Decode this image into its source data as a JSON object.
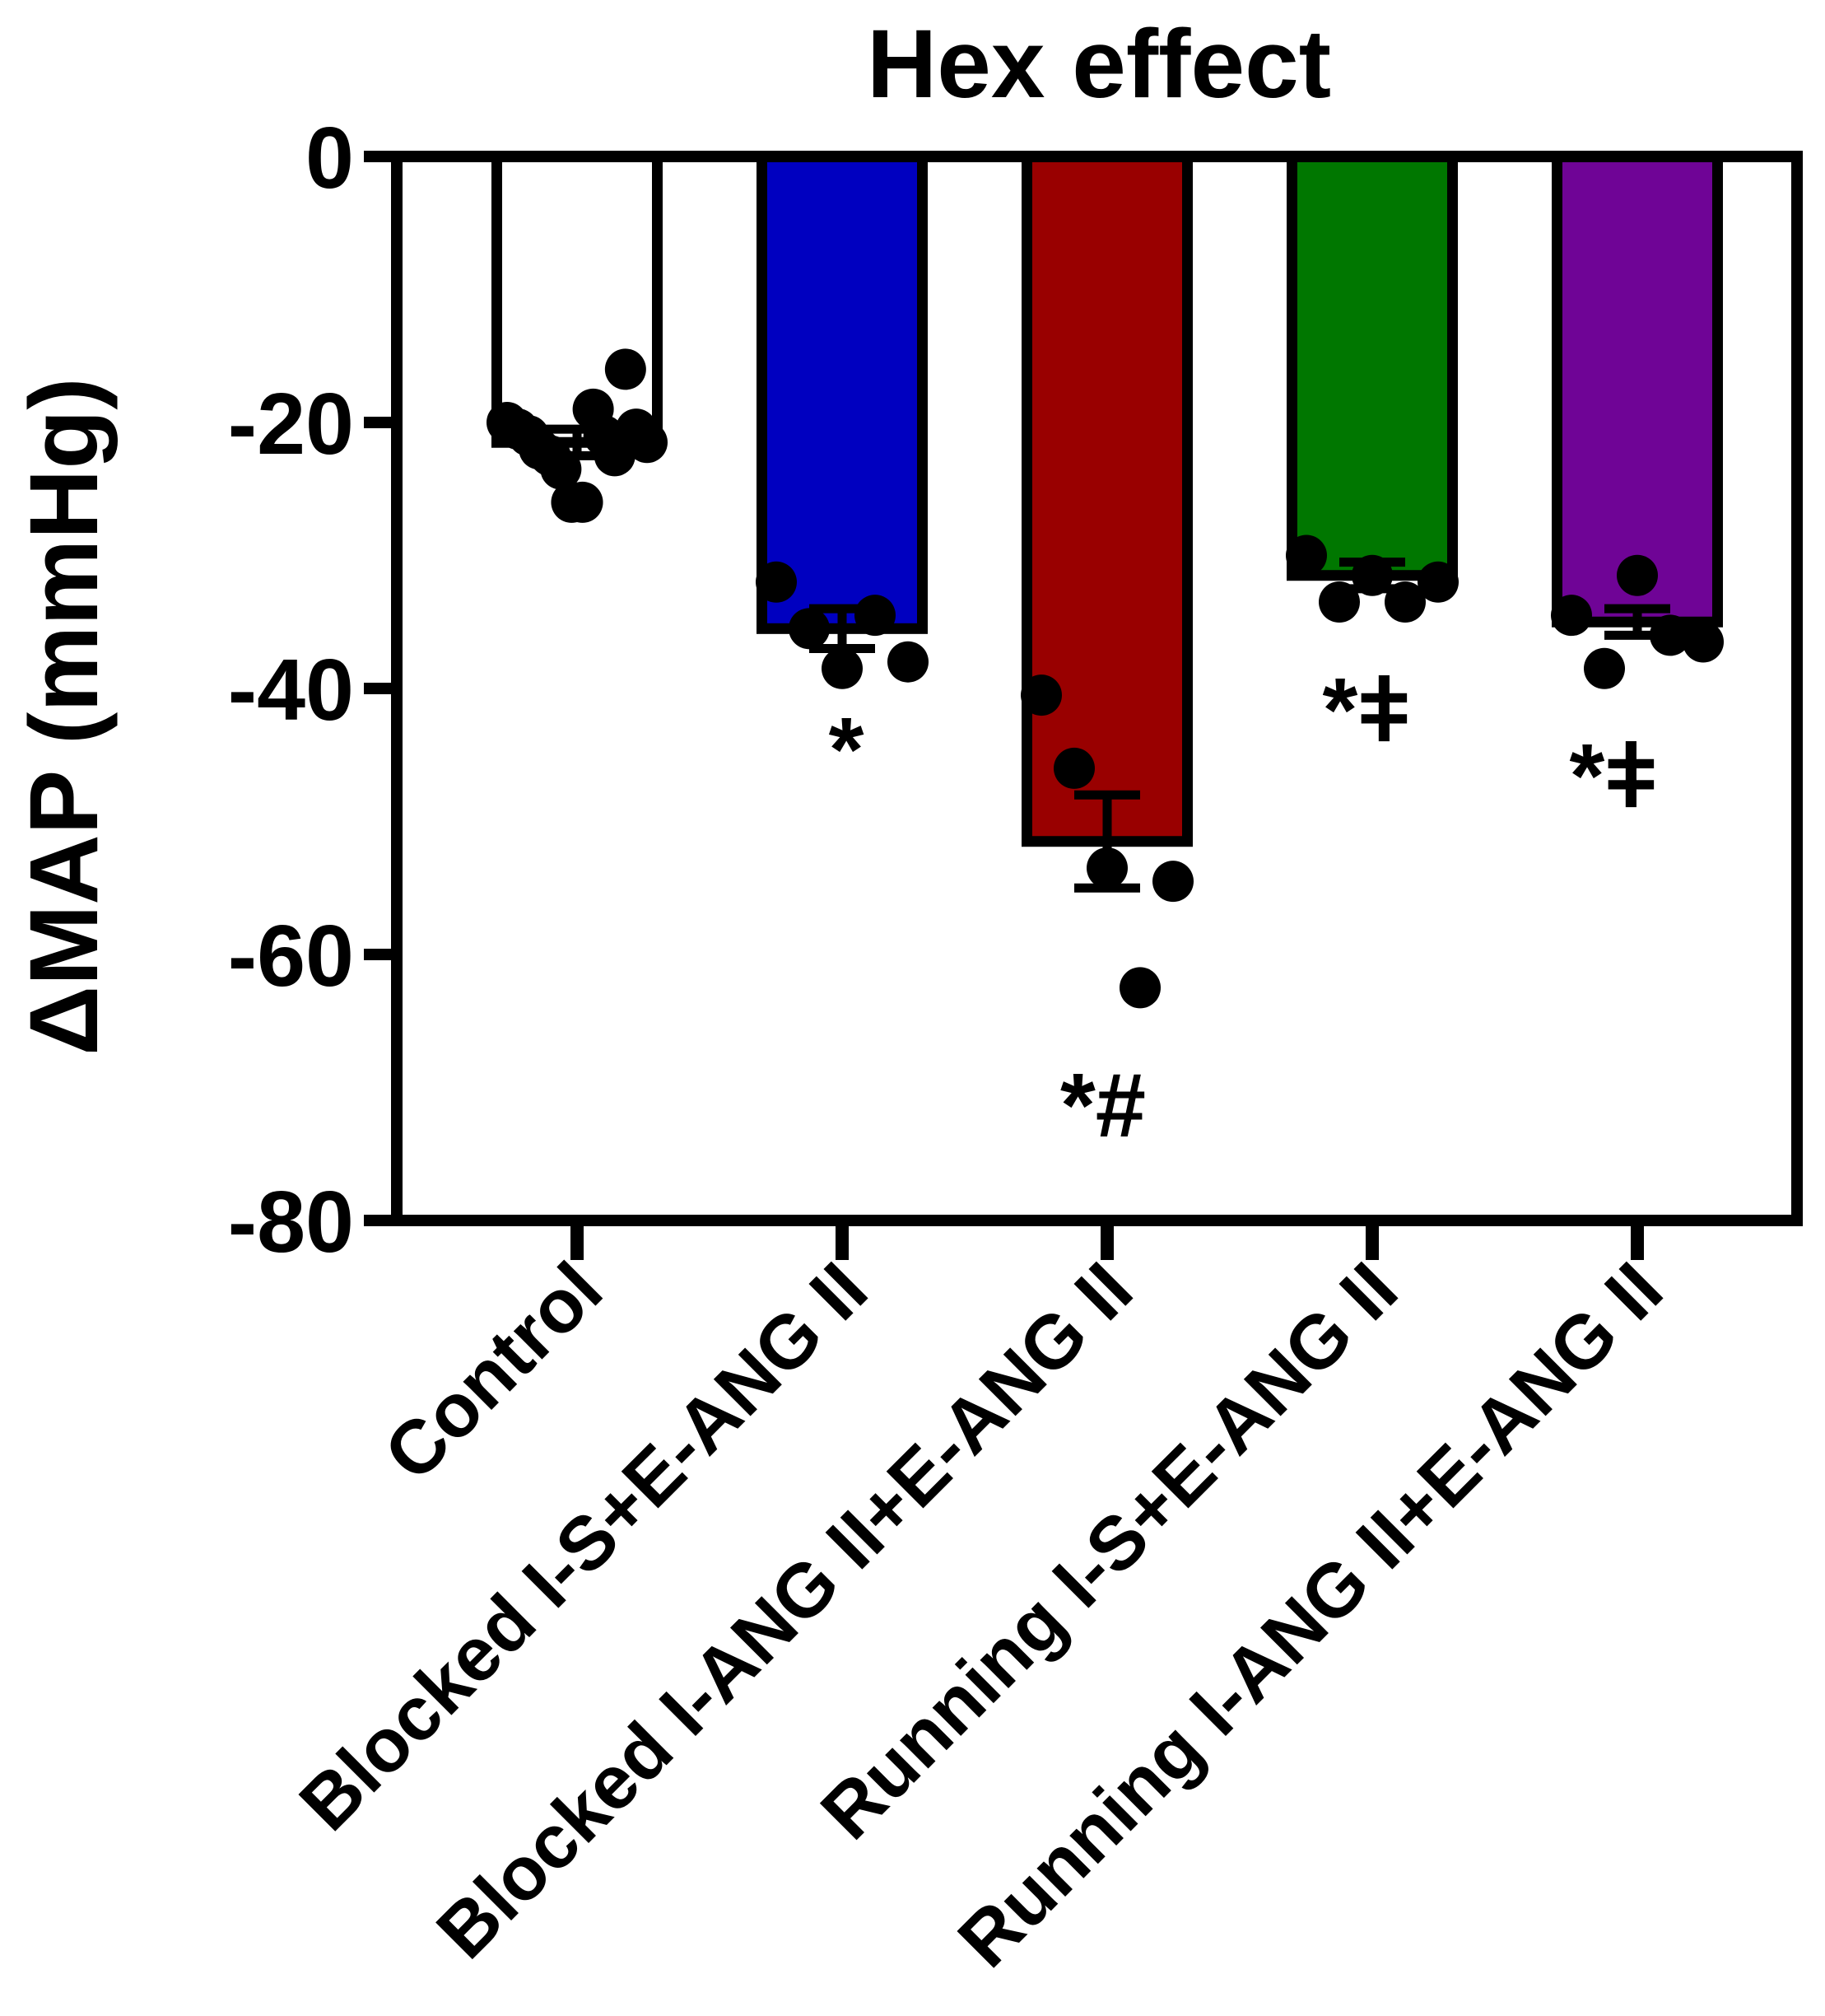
{
  "chart_data": {
    "type": "bar",
    "title": "Hex effect",
    "xlabel": "",
    "ylabel": "ΔMAP (mmHg)",
    "ylim": [
      -80,
      0
    ],
    "yticks": [
      0,
      -20,
      -40,
      -60,
      -80
    ],
    "ytick_labels": [
      "0",
      "-20",
      "-40",
      "-60",
      "-80"
    ],
    "grid": false,
    "legend": "none",
    "categories": [
      "Control",
      "Blocked I-S+E-ANG II",
      "Blocked I-ANG II+E-ANG II",
      "Running I-S+E-ANG II",
      "Running I-ANG II+E-ANG II"
    ],
    "values": [
      -21.5,
      -35.5,
      -51.5,
      -31.5,
      -35
    ],
    "sem": [
      1.0,
      1.5,
      3.5,
      1.0,
      1.0
    ],
    "colors": [
      "#ffffff",
      "#0000c0",
      "#990000",
      "#007700",
      "#6f0496"
    ],
    "points": [
      [
        -20,
        -20.5,
        -21,
        -22,
        -22.5,
        -23.5,
        -26,
        -26,
        -19,
        -21,
        -22.5,
        -16,
        -20.5,
        -21.5
      ],
      [
        -32,
        -35.5,
        -38.5,
        -34.5,
        -38
      ],
      [
        -40.5,
        -46,
        -53.5,
        -62.5,
        -54.5
      ],
      [
        -30,
        -33.5,
        -31.5,
        -33.5,
        -32
      ],
      [
        -34.5,
        -38.5,
        -31.5,
        -36,
        -36.5
      ]
    ],
    "annotations": [
      "*",
      "*#",
      "*ǂ",
      "*ǂ"
    ]
  }
}
